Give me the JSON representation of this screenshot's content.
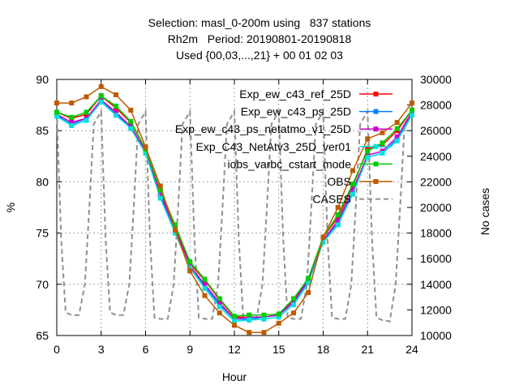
{
  "title": {
    "line1": "Selection: masl_0-200m using   837 stations",
    "line2": "Rh2m   Period: 20190801-20190818",
    "line3": "Used {00,03,...,21} + 00 01 02 03"
  },
  "chart_data": {
    "type": "line",
    "xlabel": "Hour",
    "ylabel": "%",
    "y2label": "No cases",
    "xlim": [
      0,
      24
    ],
    "ylim": [
      65,
      90
    ],
    "y2lim": [
      10000,
      30000
    ],
    "xticks": [
      "0",
      "3",
      "6",
      "9",
      "12",
      "15",
      "18",
      "21",
      "24"
    ],
    "yticks": [
      "65",
      "70",
      "75",
      "80",
      "85",
      "90"
    ],
    "y2ticks": [
      "10000",
      "12000",
      "14000",
      "16000",
      "18000",
      "20000",
      "22000",
      "24000",
      "26000",
      "28000",
      "30000"
    ],
    "grid": true,
    "legend_position": "top-right",
    "x": [
      0,
      1,
      2,
      3,
      4,
      5,
      6,
      7,
      8,
      9,
      10,
      11,
      12,
      13,
      14,
      15,
      16,
      17,
      18,
      19,
      20,
      21,
      22,
      23,
      24
    ],
    "series": [
      {
        "name": "Exp_ew_c43_ref_25D",
        "color": "#ff0000",
        "marker": "square",
        "values": [
          86.8,
          86.2,
          86.6,
          88.4,
          87.2,
          85.8,
          83.2,
          79.0,
          75.6,
          72.0,
          70.4,
          68.5,
          66.8,
          66.8,
          66.8,
          67.0,
          68.5,
          70.5,
          74.6,
          76.5,
          79.6,
          83.2,
          83.6,
          85.0,
          87.0
        ]
      },
      {
        "name": "Exp_ew_c43_ps_25D",
        "color": "#0080ff",
        "marker": "square",
        "values": [
          86.5,
          85.6,
          86.2,
          88.0,
          86.6,
          85.4,
          83.0,
          78.6,
          75.2,
          71.8,
          69.8,
          68.0,
          66.6,
          66.6,
          66.8,
          67.0,
          68.2,
          70.3,
          74.2,
          76.0,
          79.0,
          82.4,
          82.8,
          84.2,
          86.6
        ]
      },
      {
        "name": "Exp_ew_c43_ps_netatmo_v1_25D",
        "color": "#cc00cc",
        "marker": "square",
        "values": [
          86.6,
          85.8,
          86.2,
          88.0,
          86.8,
          85.4,
          83.0,
          78.8,
          75.4,
          71.8,
          70.0,
          68.2,
          66.6,
          66.8,
          66.8,
          67.0,
          68.3,
          70.4,
          74.3,
          76.2,
          79.2,
          82.6,
          83.0,
          84.4,
          86.8
        ]
      },
      {
        "name": "Exp_C43_NetAtv3_25D_ver01",
        "color": "#00e0e0",
        "marker": "square",
        "values": [
          86.4,
          85.5,
          86.0,
          87.8,
          86.5,
          85.2,
          82.8,
          78.4,
          75.0,
          71.6,
          69.6,
          67.8,
          66.4,
          66.5,
          66.6,
          66.8,
          68.0,
          70.1,
          74.1,
          75.8,
          78.8,
          82.4,
          82.8,
          84.0,
          86.5
        ]
      },
      {
        "name": "iobs_varbc_cstart_mode",
        "color": "#00cc00",
        "marker": "square",
        "values": [
          86.8,
          86.3,
          86.8,
          88.4,
          87.4,
          85.9,
          83.2,
          79.2,
          75.8,
          72.2,
          70.5,
          68.6,
          66.9,
          67.0,
          67.0,
          67.1,
          68.6,
          70.6,
          74.6,
          76.8,
          79.8,
          83.0,
          83.8,
          85.2,
          87.0
        ]
      },
      {
        "name": "OBS",
        "color": "#c05a00",
        "marker": "square",
        "values": [
          87.7,
          87.7,
          88.3,
          89.3,
          88.5,
          87.0,
          83.4,
          79.6,
          75.3,
          71.3,
          68.9,
          67.2,
          66.0,
          65.3,
          65.3,
          66.2,
          67.2,
          69.2,
          74.6,
          77.5,
          81.1,
          84.2,
          84.8,
          85.8,
          87.7
        ]
      },
      {
        "name": "CASES",
        "color": "#909090",
        "dash": true,
        "axis": "y2",
        "x": [
          0,
          0.3,
          0.6,
          1,
          1.5,
          1.9,
          2.2,
          2.5,
          3,
          3.3,
          3.6,
          4,
          4.5,
          4.9,
          5.2,
          5.5,
          6,
          6.3,
          6.6,
          7,
          7.5,
          7.9,
          8.2,
          8.5,
          9,
          9.3,
          9.6,
          10,
          10.5,
          10.9,
          11.2,
          11.5,
          12,
          12.3,
          12.6,
          13,
          13.5,
          13.9,
          14.2,
          14.5,
          15,
          15.3,
          15.6,
          16,
          16.5,
          16.9,
          17.2,
          17.5,
          18,
          18.3,
          18.6,
          19,
          19.5,
          19.9,
          20.2,
          20.5,
          21,
          21.3,
          21.6,
          22,
          22.5,
          22.9,
          23.2,
          23.5,
          24
        ],
        "values": [
          27500,
          17500,
          11800,
          11600,
          11600,
          14000,
          20000,
          26500,
          27500,
          17500,
          11800,
          11600,
          11600,
          14000,
          20000,
          26500,
          27500,
          17500,
          11400,
          11300,
          11300,
          14000,
          20000,
          26500,
          27500,
          17500,
          11400,
          11300,
          11300,
          14000,
          20000,
          26500,
          27500,
          17500,
          11400,
          11300,
          11300,
          14000,
          20000,
          26500,
          27500,
          17500,
          11400,
          11300,
          11300,
          14000,
          20000,
          26500,
          27500,
          17500,
          11400,
          11300,
          11300,
          14000,
          20000,
          26500,
          27500,
          17500,
          11400,
          11200,
          11100,
          14000,
          20000,
          26500,
          27500
        ]
      }
    ]
  }
}
